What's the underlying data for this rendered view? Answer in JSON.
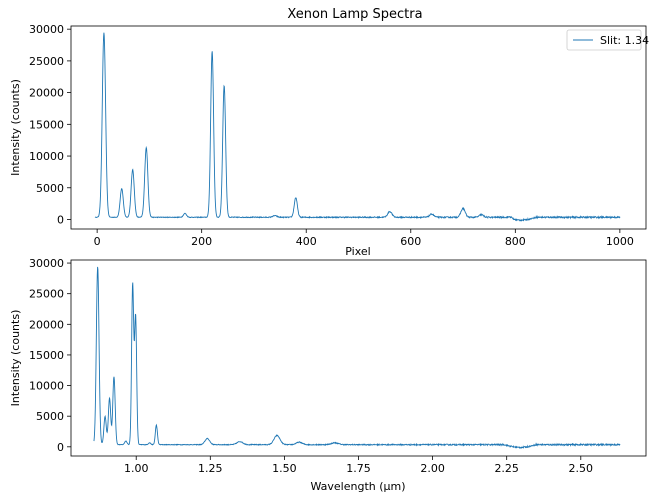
{
  "chart_data": [
    {
      "type": "line",
      "title": "Xenon Lamp Spectra",
      "xlabel": "Pixel",
      "ylabel": "Intensity (counts)",
      "xlim": [
        -50,
        1050
      ],
      "ylim": [
        -1500,
        30500
      ],
      "xticks": [
        0,
        200,
        400,
        600,
        800,
        1000
      ],
      "yticks": [
        0,
        5000,
        10000,
        15000,
        20000,
        25000,
        30000
      ],
      "grid": false,
      "legend": {
        "placement": "top-right",
        "entries": [
          "Slit: 1.34"
        ]
      },
      "series": [
        {
          "name": "Slit: 1.34",
          "color": "#1f77b4",
          "peaks": [
            {
              "x": 13,
              "y": 29100,
              "w": 3.2
            },
            {
              "x": 47,
              "y": 4500,
              "w": 3.0
            },
            {
              "x": 68,
              "y": 7500,
              "w": 3.0
            },
            {
              "x": 94,
              "y": 11000,
              "w": 3.0
            },
            {
              "x": 168,
              "y": 600,
              "w": 3.0
            },
            {
              "x": 220,
              "y": 26200,
              "w": 2.8
            },
            {
              "x": 243,
              "y": 20800,
              "w": 2.8
            },
            {
              "x": 340,
              "y": 250,
              "w": 4.0
            },
            {
              "x": 380,
              "y": 3100,
              "w": 3.0
            },
            {
              "x": 560,
              "y": 900,
              "w": 4.0
            },
            {
              "x": 640,
              "y": 500,
              "w": 4.0
            },
            {
              "x": 700,
              "y": 1400,
              "w": 4.0
            },
            {
              "x": 735,
              "y": 400,
              "w": 4.0
            },
            {
              "x": 790,
              "y": 300,
              "w": 4.0
            }
          ]
        }
      ]
    },
    {
      "type": "line",
      "title": "",
      "xlabel": "Wavelength (μm)",
      "ylabel": "Intensity (counts)",
      "xlim": [
        0.78,
        2.72
      ],
      "ylim": [
        -1500,
        30500
      ],
      "xticks": [
        1.0,
        1.25,
        1.5,
        1.75,
        2.0,
        2.25,
        2.5
      ],
      "xtick_labels": [
        "1.00",
        "1.25",
        "1.50",
        "1.75",
        "2.00",
        "2.25",
        "2.50"
      ],
      "yticks": [
        0,
        5000,
        10000,
        15000,
        20000,
        25000,
        30000
      ],
      "grid": false,
      "series": [
        {
          "color": "#1f77b4",
          "peaks": [
            {
              "x": 0.87,
              "y": 29100,
              "w": 0.0045
            },
            {
              "x": 0.895,
              "y": 4600,
              "w": 0.004
            },
            {
              "x": 0.91,
              "y": 7600,
              "w": 0.004
            },
            {
              "x": 0.925,
              "y": 11100,
              "w": 0.004
            },
            {
              "x": 0.965,
              "y": 600,
              "w": 0.004
            },
            {
              "x": 0.988,
              "y": 26200,
              "w": 0.0035
            },
            {
              "x": 0.998,
              "y": 21000,
              "w": 0.0035
            },
            {
              "x": 1.045,
              "y": 300,
              "w": 0.004
            },
            {
              "x": 1.068,
              "y": 3200,
              "w": 0.0035
            },
            {
              "x": 1.24,
              "y": 1000,
              "w": 0.008
            },
            {
              "x": 1.35,
              "y": 500,
              "w": 0.01
            },
            {
              "x": 1.475,
              "y": 1500,
              "w": 0.01
            },
            {
              "x": 1.55,
              "y": 400,
              "w": 0.01
            },
            {
              "x": 1.67,
              "y": 300,
              "w": 0.012
            }
          ]
        }
      ]
    }
  ]
}
